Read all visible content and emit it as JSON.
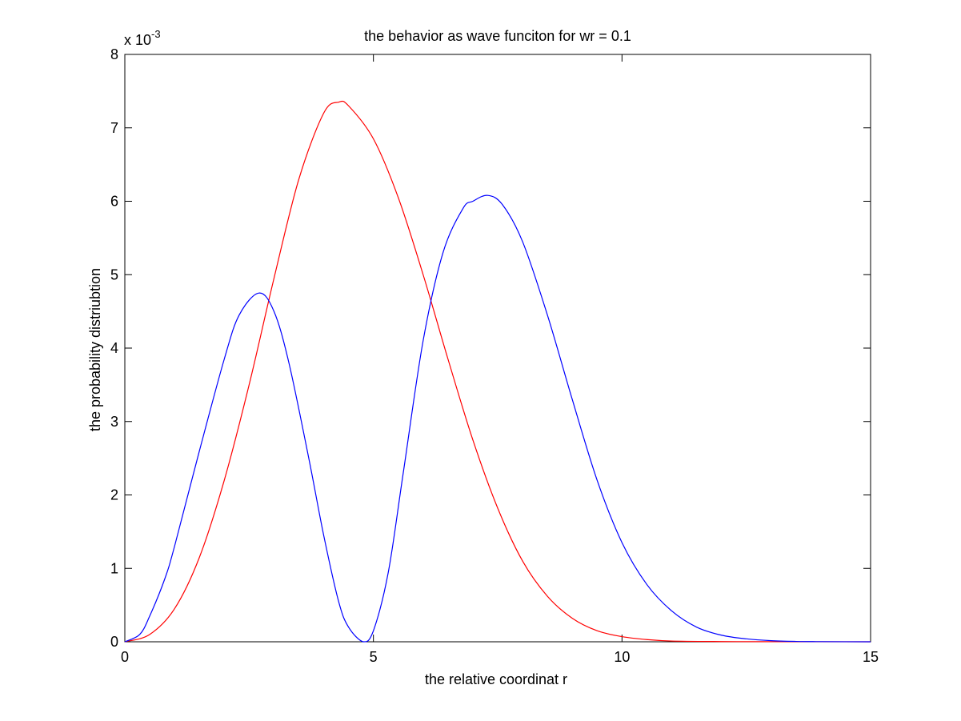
{
  "chart_data": {
    "type": "line",
    "title": "the behavior as wave funciton for wr = 0.1",
    "xlabel": "the relative coordinat r",
    "ylabel": "the probability distriubtion",
    "y_multiplier": {
      "base": "x 10",
      "exponent": "-3"
    },
    "xlim": [
      0,
      15
    ],
    "ylim": [
      0,
      8
    ],
    "x_ticks": [
      0,
      5,
      10,
      15
    ],
    "x_tick_labels": [
      "0",
      "5",
      "10",
      "15"
    ],
    "y_ticks": [
      0,
      1,
      2,
      3,
      4,
      5,
      6,
      7,
      8
    ],
    "y_tick_labels": [
      "0",
      "1",
      "2",
      "3",
      "4",
      "5",
      "6",
      "7",
      "8"
    ],
    "grid": false,
    "series": [
      {
        "color": "#ff0000",
        "x": [
          0,
          0.5,
          1,
          1.5,
          2,
          2.5,
          3,
          3.5,
          4,
          4.3,
          4.5,
          5,
          5.5,
          6,
          6.5,
          7,
          7.5,
          8,
          8.5,
          9,
          9.5,
          10,
          10.5,
          11,
          12,
          13,
          15
        ],
        "values": [
          0,
          0.1,
          0.45,
          1.15,
          2.2,
          3.5,
          4.95,
          6.3,
          7.2,
          7.35,
          7.3,
          6.85,
          6.05,
          5.0,
          3.85,
          2.75,
          1.82,
          1.1,
          0.62,
          0.32,
          0.15,
          0.07,
          0.03,
          0.01,
          0.003,
          0.001,
          0
        ]
      },
      {
        "color": "#0000ff",
        "x": [
          0,
          0.3,
          0.5,
          0.8,
          1,
          1.5,
          2,
          2.3,
          2.7,
          3,
          3.3,
          3.7,
          4,
          4.3,
          4.5,
          4.8,
          5,
          5.3,
          5.6,
          6,
          6.4,
          6.8,
          7.0,
          7.3,
          7.6,
          8,
          8.5,
          9,
          9.5,
          10,
          10.5,
          11,
          11.5,
          12,
          12.5,
          13,
          13.5,
          14,
          15
        ],
        "values": [
          0,
          0.1,
          0.35,
          0.85,
          1.3,
          2.6,
          3.85,
          4.45,
          4.75,
          4.5,
          3.8,
          2.5,
          1.45,
          0.55,
          0.2,
          0.0,
          0.15,
          0.95,
          2.3,
          4.1,
          5.3,
          5.9,
          6.0,
          6.08,
          5.95,
          5.45,
          4.45,
          3.3,
          2.2,
          1.35,
          0.78,
          0.42,
          0.2,
          0.09,
          0.04,
          0.015,
          0.005,
          0.002,
          0
        ]
      }
    ]
  }
}
